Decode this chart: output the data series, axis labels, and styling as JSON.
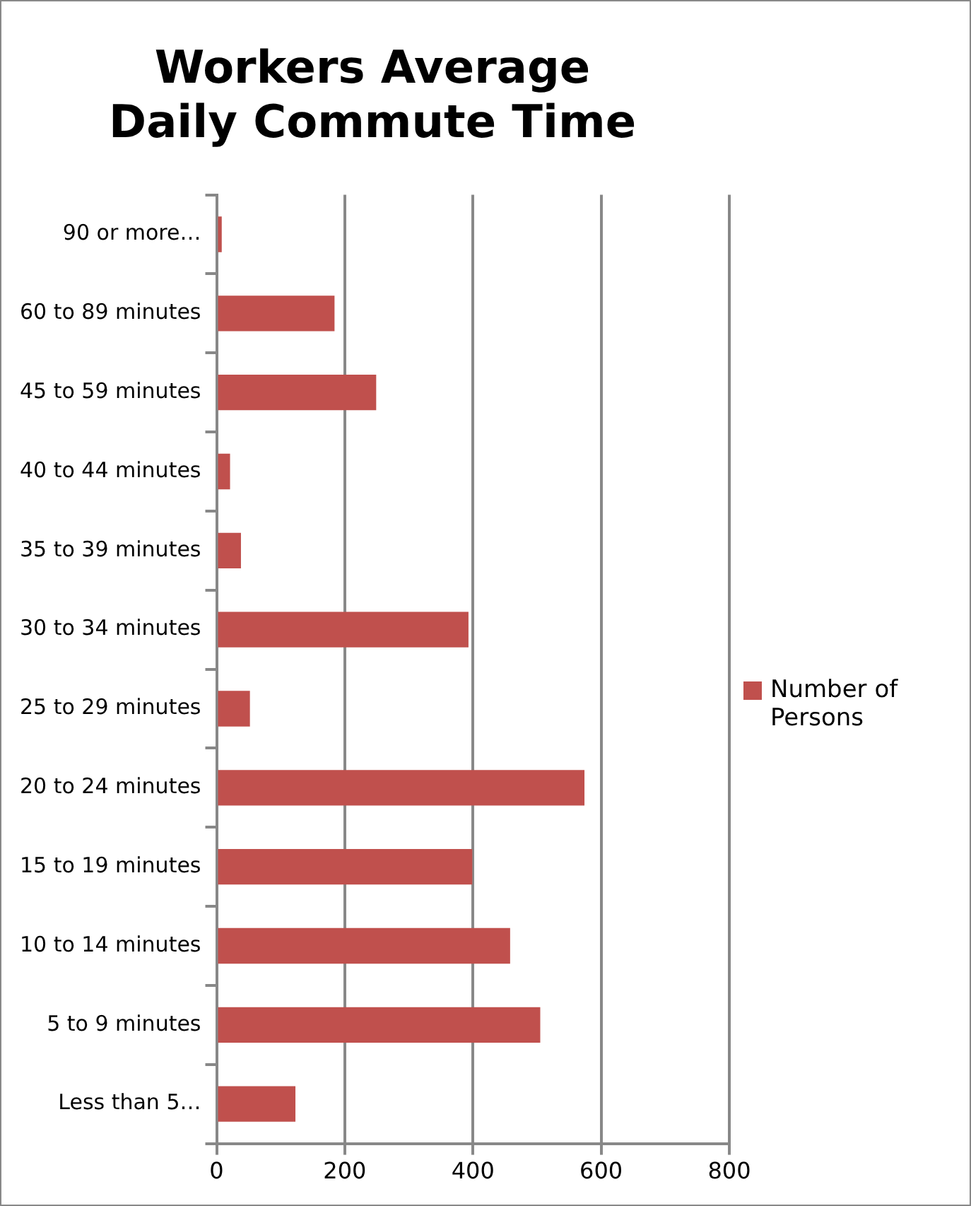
{
  "chart_data": {
    "type": "bar",
    "orientation": "horizontal",
    "title": "Workers Average Daily Commute Time",
    "categories": [
      "90 or more…",
      "60 to 89 minutes",
      "45 to 59 minutes",
      "40 to 44 minutes",
      "35 to 39 minutes",
      "30 to 34 minutes",
      "25 to 29 minutes",
      "20 to 24 minutes",
      "15 to 19 minutes",
      "10 to 14 minutes",
      "5 to 9 minutes",
      "Less than 5…"
    ],
    "series": [
      {
        "name": "Number of Persons",
        "color": "#c0504d",
        "values": [
          8,
          184,
          249,
          21,
          38,
          393,
          52,
          574,
          399,
          458,
          505,
          123
        ]
      }
    ],
    "xlim": [
      0,
      800
    ],
    "xticks": [
      0,
      200,
      400,
      600,
      800
    ],
    "grid": "x",
    "legend": "right"
  }
}
